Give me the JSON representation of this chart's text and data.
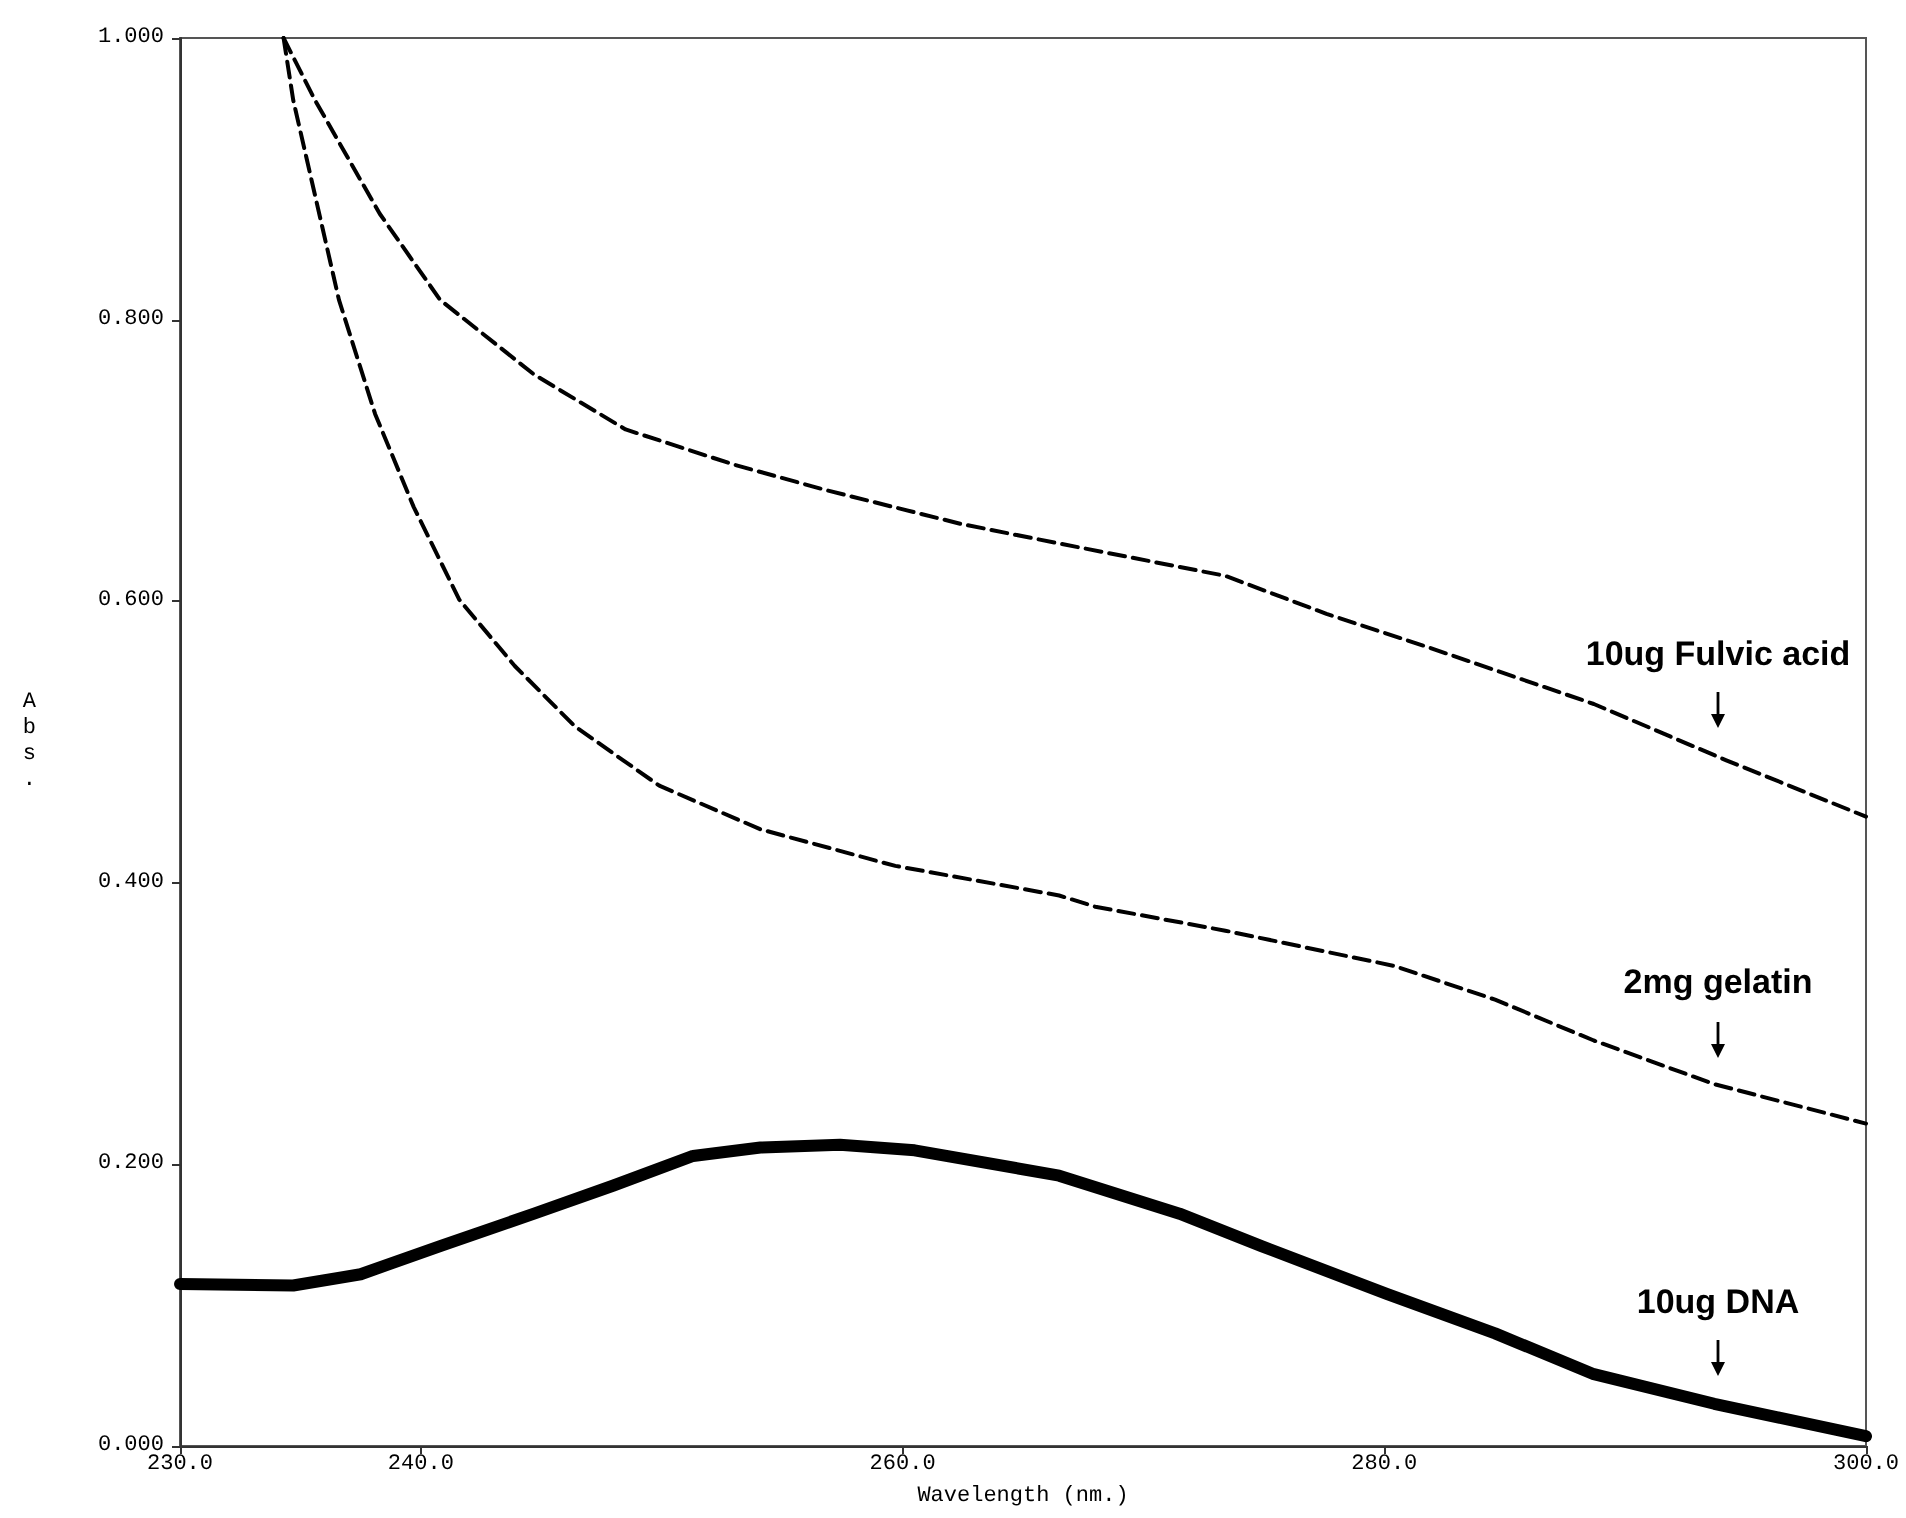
{
  "chart_data": {
    "type": "line",
    "xlabel": "Wavelength (nm.)",
    "ylabel": "Abs.",
    "xlim": [
      230,
      300
    ],
    "xticks": [
      {
        "value": 230,
        "label": "230.0"
      },
      {
        "value": 240,
        "label": "240.0"
      },
      {
        "value": 260,
        "label": "260.0"
      },
      {
        "value": 280,
        "label": "280.0"
      },
      {
        "value": 300,
        "label": "300.0"
      }
    ],
    "ylim": [
      0,
      1
    ],
    "yticks": [
      {
        "value": 0,
        "label": "0.000"
      },
      {
        "value": 0.2,
        "label": "0.200"
      },
      {
        "value": 0.4,
        "label": "0.400"
      },
      {
        "value": 0.6,
        "label": "0.600"
      },
      {
        "value": 0.8,
        "label": "0.800"
      },
      {
        "value": 1,
        "label": "1.000"
      }
    ],
    "grid": false,
    "legend": false,
    "marker": "none",
    "series": [
      {
        "name": "10ug Fulvic acid",
        "color": "#000000",
        "line_style": "dashed",
        "x": [
          234.3,
          235.6,
          238.3,
          240.8,
          244.7,
          248.5,
          253.0,
          256.8,
          262.4,
          266.5,
          273.4,
          277.6,
          281.7,
          288.7,
          294.2,
          300
        ],
        "values": [
          1.0,
          0.956,
          0.875,
          0.814,
          0.761,
          0.722,
          0.697,
          0.679,
          0.655,
          0.641,
          0.618,
          0.591,
          0.568,
          0.527,
          0.487,
          0.447
        ]
      },
      {
        "name": "2mg gelatin",
        "color": "#000000",
        "line_style": "dashed",
        "x": [
          234.3,
          234.7,
          236.6,
          238.1,
          239.7,
          241.6,
          243.9,
          246.4,
          249.9,
          254.1,
          259.7,
          266.5,
          268.0,
          273.4,
          280.4,
          284.6,
          288.7,
          293.7,
          300
        ],
        "values": [
          1.0,
          0.956,
          0.814,
          0.733,
          0.667,
          0.601,
          0.554,
          0.511,
          0.469,
          0.438,
          0.412,
          0.391,
          0.383,
          0.366,
          0.341,
          0.317,
          0.288,
          0.257,
          0.229
        ]
      },
      {
        "name": "10ug DNA",
        "color": "#000000",
        "line_style": "solid",
        "x": [
          230,
          234.7,
          237.5,
          240.8,
          244.7,
          248.0,
          251.3,
          254.1,
          257.4,
          260.5,
          266.5,
          271.5,
          274.9,
          280.1,
          284.6,
          288.7,
          293.7,
          300
        ],
        "values": [
          0.115,
          0.114,
          0.122,
          0.142,
          0.165,
          0.185,
          0.206,
          0.212,
          0.214,
          0.21,
          0.192,
          0.165,
          0.142,
          0.108,
          0.08,
          0.051,
          0.03,
          0.007
        ]
      }
    ]
  }
}
